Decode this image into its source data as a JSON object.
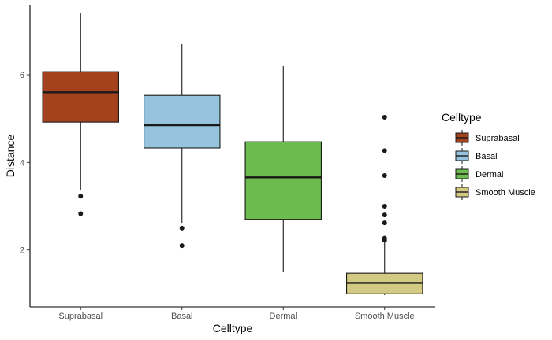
{
  "chart_data": {
    "type": "boxplot",
    "title": "",
    "xlabel": "Celltype",
    "ylabel": "Distance",
    "ylim": [
      0.7,
      7.6
    ],
    "yticks": [
      2,
      4,
      6
    ],
    "grid": false,
    "legend": {
      "title": "Celltype",
      "placement": "right"
    },
    "categories": [
      "Suprabasal",
      "Basal",
      "Dermal",
      "Smooth Muscle"
    ],
    "series": [
      {
        "name": "Suprabasal",
        "color": "#A3421C",
        "whisker_low": 3.37,
        "q1": 4.92,
        "median": 5.6,
        "q3": 6.07,
        "whisker_high": 7.4,
        "outliers": [
          3.23,
          2.83
        ]
      },
      {
        "name": "Basal",
        "color": "#96C4DF",
        "whisker_low": 2.62,
        "q1": 4.33,
        "median": 4.85,
        "q3": 5.53,
        "whisker_high": 6.7,
        "outliers": [
          2.5,
          2.1
        ]
      },
      {
        "name": "Dermal",
        "color": "#6BBB4F",
        "whisker_low": 1.5,
        "q1": 2.7,
        "median": 3.66,
        "q3": 4.47,
        "whisker_high": 6.2,
        "outliers": []
      },
      {
        "name": "Smooth Muscle",
        "color": "#D2C982",
        "whisker_low": 0.97,
        "q1": 1.0,
        "median": 1.25,
        "q3": 1.47,
        "whisker_high": 2.17,
        "outliers": [
          5.03,
          4.27,
          3.7,
          3.0,
          2.8,
          2.62,
          2.27,
          2.22
        ]
      }
    ]
  }
}
